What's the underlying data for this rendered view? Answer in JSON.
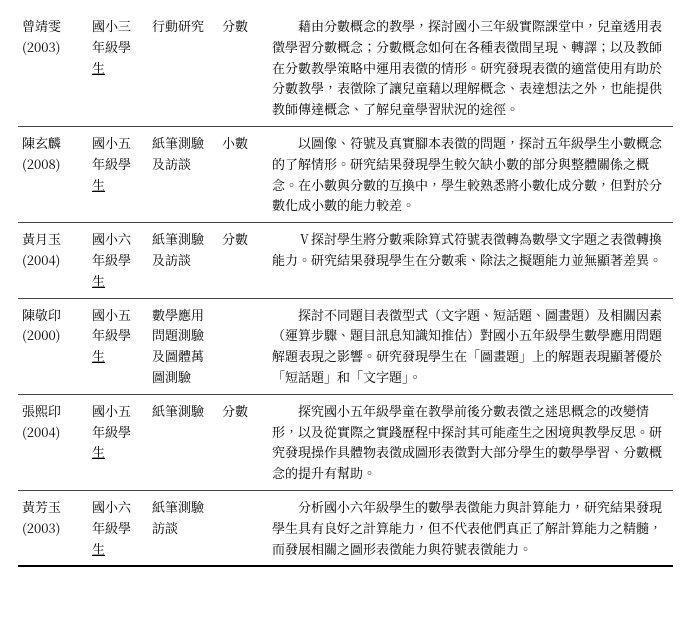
{
  "rows": [
    {
      "author": "曾靖雯 (2003)",
      "subject_line1": "國小三",
      "subject_line2": "年級學",
      "subject_line3": "生",
      "method": "行動研究",
      "topic": "分數",
      "summary": "藉由分數概念的教學，探討國小三年級實際課堂中，兒童透用表徵學習分數概念；分數概念如何在各種表徵間呈現、轉譯；以及教師在分數教學策略中運用表徵的情形。研究發現表徵的適當使用有助於分數教學，表徵除了讓兒童藉以理解概念、表達想法之外，也能提供教師傳達概念、了解兒童學習狀況的途徑。"
    },
    {
      "author": "陳玄麟 (2008)",
      "subject_line1": "國小五",
      "subject_line2": "年級學",
      "subject_line3": "生",
      "method": "紙筆測驗及訪談",
      "topic": "小數",
      "summary": "以圖像、符號及真實腳本表徵的問題，探討五年級學生小數概念的了解情形。研究結果發現學生較欠缺小數的部分與整體關係之概念。在小數與分數的互換中，學生較熟悉將小數化成分數，但對於分數化成小數的能力較差。"
    },
    {
      "author": "黃月玉 (2004)",
      "subject_line1": "國小六",
      "subject_line2": "年級學",
      "subject_line3": "生",
      "method": "紙筆測驗及訪談",
      "topic": "分數",
      "summary": "Ⅴ探討學生將分數乘除算式符號表徵轉為數學文字題之表徵轉換能力。研究結果發現學生在分數乘、除法之擬題能力並無顯著差異。"
    },
    {
      "author": "陳敬印 (2000)",
      "subject_line1": "國小五",
      "subject_line2": "年級學",
      "subject_line3": "生",
      "method": "數學應用問題測驗及圖體萬圖測驗",
      "topic": "",
      "summary": "探討不同題目表徵型式（文字題、短話題、圖畫題）及相關因素（運算步驟、題目訊息知識知推估）對國小五年級學生數學應用問題解題表現之影響。研究發現學生在「圖畫題」上的解題表現顯著優於「短話題」和「文字題」。"
    },
    {
      "author": "張熙印 (2004)",
      "subject_line1": "國小五",
      "subject_line2": "年級學",
      "subject_line3": "生",
      "method": "紙筆測驗",
      "topic": "分數",
      "summary": "探究國小五年級學童在教學前後分數表徵之迷思概念的改變情形，以及從實際之實踐歷程中探討其可能產生之困境與教學反思。研究發現操作具體物表徵成圖形表徵對大部分學生的數學學習、分數概念的提升有幫助。"
    },
    {
      "author": "黃芳玉 (2003)",
      "subject_line1": "國小六",
      "subject_line2": "年級學",
      "subject_line3": "生",
      "method": "紙筆測驗訪談",
      "topic": "",
      "summary": "分析國小六年級學生的數學表徵能力與計算能力，研究結果發現學生具有良好之計算能力，但不代表他們真正了解計算能力之精髓，而發展相關之圖形表徵能力與符號表徵能力。"
    }
  ]
}
